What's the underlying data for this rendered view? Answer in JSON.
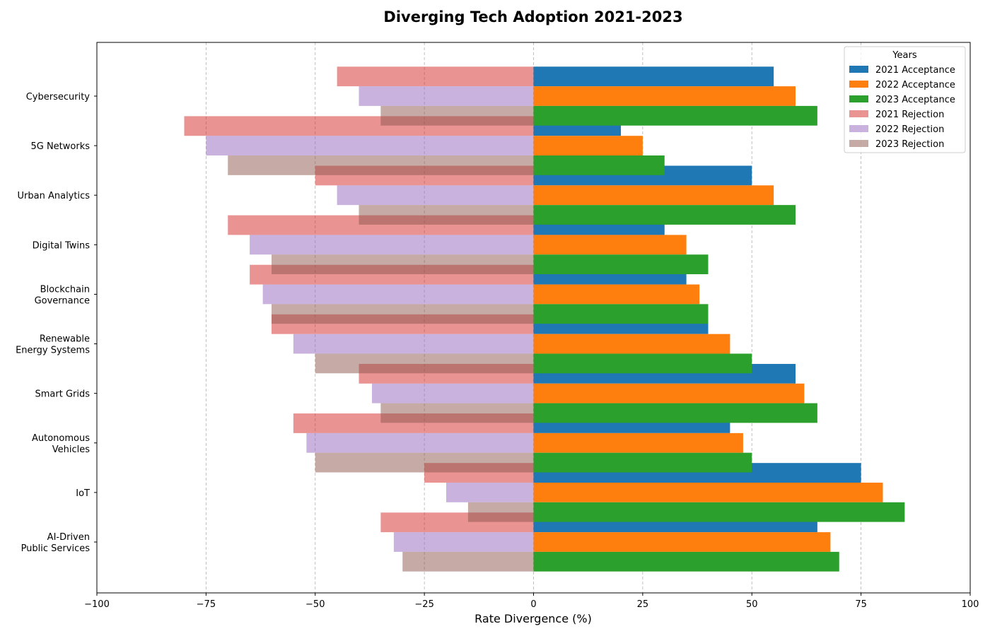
{
  "chart_data": {
    "type": "bar",
    "orientation": "horizontal",
    "title": "Diverging Tech Adoption 2021-2023",
    "xlabel": "Rate Divergence (%)",
    "ylabel": "",
    "xlim": [
      -100,
      100
    ],
    "xticks": [
      -100,
      -75,
      -50,
      -25,
      0,
      25,
      50,
      75,
      100
    ],
    "xtick_labels": [
      "−100",
      "−75",
      "−50",
      "−25",
      "0",
      "25",
      "50",
      "75",
      "100"
    ],
    "grid": "x-dashed",
    "legend": {
      "title": "Years",
      "position": "top-right"
    },
    "categories": [
      [
        "Cybersecurity"
      ],
      [
        "5G Networks"
      ],
      [
        "Urban Analytics"
      ],
      [
        "Digital Twins"
      ],
      [
        "Blockchain",
        "Governance"
      ],
      [
        "Renewable",
        "Energy Systems"
      ],
      [
        "Smart Grids"
      ],
      [
        "Autonomous",
        "Vehicles"
      ],
      [
        "IoT"
      ],
      [
        "AI-Driven",
        "Public Services"
      ]
    ],
    "series": [
      {
        "name": "2021 Acceptance",
        "color": "#1f77b4",
        "opacity": 1,
        "offset_index": 0,
        "values": [
          55,
          20,
          50,
          30,
          35,
          40,
          60,
          45,
          75,
          65
        ]
      },
      {
        "name": "2022 Acceptance",
        "color": "#ff7f0e",
        "opacity": 1,
        "offset_index": 1,
        "values": [
          60,
          25,
          55,
          35,
          38,
          45,
          62,
          48,
          80,
          68
        ]
      },
      {
        "name": "2023 Acceptance",
        "color": "#2ca02c",
        "opacity": 1,
        "offset_index": 2,
        "values": [
          65,
          30,
          60,
          40,
          40,
          50,
          65,
          50,
          85,
          70
        ]
      },
      {
        "name": "2021 Rejection",
        "color": "#d62728",
        "opacity": 0.5,
        "offset_index": 0,
        "values": [
          -45,
          -80,
          -50,
          -70,
          -65,
          -60,
          -40,
          -55,
          -25,
          -35
        ]
      },
      {
        "name": "2022 Rejection",
        "color": "#9467bd",
        "opacity": 0.5,
        "offset_index": 1,
        "values": [
          -40,
          -75,
          -45,
          -65,
          -62,
          -55,
          -37,
          -52,
          -20,
          -32
        ]
      },
      {
        "name": "2023 Rejection",
        "color": "#8c564b",
        "opacity": 0.5,
        "offset_index": 2,
        "values": [
          -35,
          -70,
          -40,
          -60,
          -60,
          -50,
          -35,
          -50,
          -15,
          -30
        ]
      }
    ]
  }
}
